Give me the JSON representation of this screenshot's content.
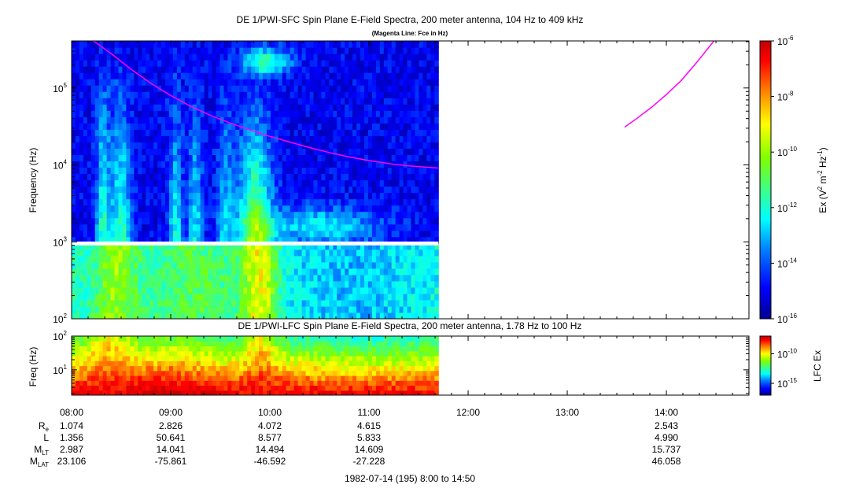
{
  "colors": {
    "background": "#ffffff",
    "axes": "#000000",
    "fce_line": "#ff00ff",
    "colormap": [
      "#00008f",
      "#0000ff",
      "#0080ff",
      "#00ffff",
      "#40ff80",
      "#80ff00",
      "#ffff00",
      "#ff8000",
      "#ff0000",
      "#c00000"
    ]
  },
  "chart_data": [
    {
      "type": "heatmap",
      "name": "sfc",
      "title": "DE 1/PWI-SFC  Spin Plane E-Field Spectra, 200 meter antenna, 104 Hz to 409 kHz",
      "subtitle": "(Magenta Line: Fce in Hz)",
      "ylabel": "Frequency (Hz)",
      "yscale": "log",
      "ylim": [
        100,
        409000
      ],
      "yticks": [
        {
          "value": 100,
          "base": "10",
          "exp": "2"
        },
        {
          "value": 1000,
          "base": "10",
          "exp": "3"
        },
        {
          "value": 10000,
          "base": "10",
          "exp": "4"
        },
        {
          "value": 100000,
          "base": "10",
          "exp": "5"
        }
      ],
      "xlim_hours": [
        8.0,
        14.833
      ],
      "data_end_hour": 11.7,
      "gap_freq_range_hz": [
        900,
        1010
      ],
      "colorbar": {
        "label": "Ex (V",
        "label_sup1": "2",
        "label_mid": " m",
        "label_sup2": "-2",
        "label_mid2": " Hz",
        "label_sup3": "-1",
        "label_end": ")",
        "scale": "log",
        "range": [
          1e-16,
          1e-06
        ],
        "ticks": [
          {
            "value": -6,
            "base": "10",
            "exp": "-6"
          },
          {
            "value": -8,
            "base": "10",
            "exp": "-8"
          },
          {
            "value": -10,
            "base": "10",
            "exp": "-10"
          },
          {
            "value": -12,
            "base": "10",
            "exp": "-12"
          },
          {
            "value": -14,
            "base": "10",
            "exp": "-14"
          },
          {
            "value": -16,
            "base": "10",
            "exp": "-16"
          }
        ]
      },
      "fce_line": {
        "segment1": {
          "hours": [
            8.22,
            8.4,
            8.6,
            8.8,
            9.0,
            9.2,
            9.4,
            9.6,
            9.8,
            10.0,
            10.2,
            10.4,
            10.6,
            10.8,
            11.0,
            11.2,
            11.4,
            11.7
          ],
          "hz": [
            409000,
            280000,
            175000,
            115000,
            80000,
            58000,
            44000,
            35000,
            28500,
            23500,
            19800,
            16800,
            14500,
            12700,
            11400,
            10400,
            9700,
            9100
          ]
        },
        "segment2": {
          "hours": [
            13.58,
            13.7,
            13.85,
            14.0,
            14.15,
            14.3,
            14.48
          ],
          "hz": [
            31000,
            40000,
            56000,
            82000,
            125000,
            210000,
            409000
          ]
        }
      }
    },
    {
      "type": "heatmap",
      "name": "lfc",
      "title": "DE 1/PWI-LFC  Spin Plane E-Field Spectra, 200 meter antenna, 1.78 Hz to 100 Hz",
      "ylabel": "Freq (Hz)",
      "yscale": "log",
      "ylim": [
        1.78,
        100
      ],
      "yticks": [
        {
          "value": 10,
          "base": "10",
          "exp": "1"
        },
        {
          "value": 100,
          "base": "10",
          "exp": "2"
        }
      ],
      "xlim_hours": [
        8.0,
        14.833
      ],
      "data_end_hour": 11.7,
      "colorbar": {
        "label": "LFC Ex",
        "ticks": [
          {
            "value": -10,
            "base": "10",
            "exp": "-10"
          },
          {
            "value": -15,
            "base": "10",
            "exp": "-15"
          }
        ]
      }
    }
  ],
  "xaxis": {
    "ticks": [
      {
        "hour": 8,
        "label": "08:00"
      },
      {
        "hour": 9,
        "label": "09:00"
      },
      {
        "hour": 10,
        "label": "10:00"
      },
      {
        "hour": 11,
        "label": "11:00"
      },
      {
        "hour": 12,
        "label": "12:00"
      },
      {
        "hour": 13,
        "label": "13:00"
      },
      {
        "hour": 14,
        "label": "14:00"
      }
    ],
    "ephemeris": [
      {
        "label": "R",
        "sub": "e",
        "values": [
          "1.074",
          "2.826",
          "4.072",
          "4.615",
          "",
          "",
          "2.543"
        ]
      },
      {
        "label": "L",
        "sub": "",
        "values": [
          "1.356",
          "50.641",
          "8.577",
          "5.833",
          "",
          "",
          "4.990"
        ]
      },
      {
        "label": "M",
        "sub": "LT",
        "values": [
          "2.987",
          "14.041",
          "14.494",
          "14.609",
          "",
          "",
          "15.737"
        ]
      },
      {
        "label": "M",
        "sub": "LAT",
        "values": [
          "23.106",
          "-75.861",
          "-46.592",
          "-27.228",
          "",
          "",
          "46.058"
        ]
      }
    ],
    "footer": "1982-07-14 (195) 8:00 to 14:50"
  }
}
